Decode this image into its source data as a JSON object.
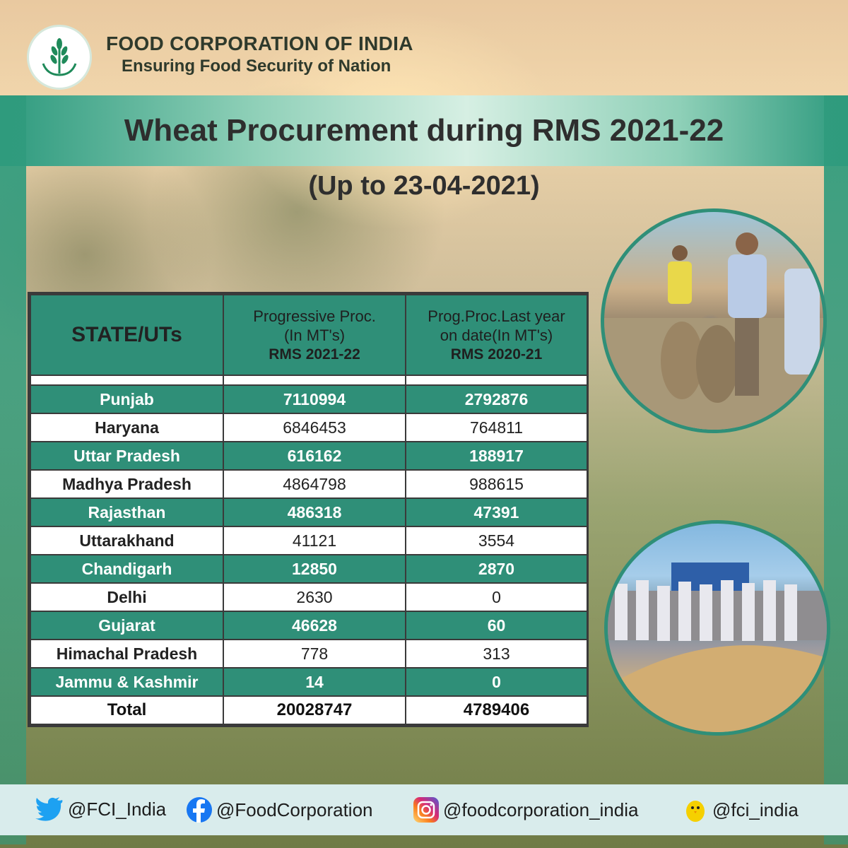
{
  "header": {
    "org_name": "FOOD CORPORATION OF INDIA",
    "tagline": "Ensuring Food Security of Nation",
    "logo_icon": "fci-wheat-logo"
  },
  "title": "Wheat Procurement during RMS 2021-22",
  "subtitle": "(Up to 23-04-2021)",
  "table": {
    "columns": [
      {
        "label": "STATE/UTs"
      },
      {
        "line1": "Progressive Proc.",
        "line2": "(In MT's)",
        "line3": "RMS 2021-22"
      },
      {
        "line1": "Prog.Proc.Last year",
        "line2": "on date(In MT's)",
        "line3": "RMS 2020-21"
      }
    ],
    "rows": [
      {
        "state": "Punjab",
        "current": "7110994",
        "last_year": "2792876"
      },
      {
        "state": "Haryana",
        "current": "6846453",
        "last_year": "764811"
      },
      {
        "state": "Uttar Pradesh",
        "current": "616162",
        "last_year": "188917"
      },
      {
        "state": "Madhya Pradesh",
        "current": "4864798",
        "last_year": "988615"
      },
      {
        "state": "Rajasthan",
        "current": "486318",
        "last_year": "47391"
      },
      {
        "state": "Uttarakhand",
        "current": "41121",
        "last_year": "3554"
      },
      {
        "state": "Chandigarh",
        "current": "12850",
        "last_year": "2870"
      },
      {
        "state": "Delhi",
        "current": "2630",
        "last_year": "0"
      },
      {
        "state": "Gujarat",
        "current": "46628",
        "last_year": "60"
      },
      {
        "state": "Himachal Pradesh",
        "current": "778",
        "last_year": "313"
      },
      {
        "state": "Jammu & Kashmir",
        "current": "14",
        "last_year": "0"
      }
    ],
    "total": {
      "state": "Total",
      "current": "20028747",
      "last_year": "4789406"
    }
  },
  "colors": {
    "accent_green": "#2f8f78",
    "frame_green": "#2f9b7d",
    "footer_bg": "#d9ecec"
  },
  "social": [
    {
      "icon": "twitter-icon",
      "handle": "@FCI_India"
    },
    {
      "icon": "facebook-icon",
      "handle": "@FoodCorporation"
    },
    {
      "icon": "instagram-icon",
      "handle": "@foodcorporation_india"
    },
    {
      "icon": "koo-icon",
      "handle": "@fci_india"
    }
  ]
}
